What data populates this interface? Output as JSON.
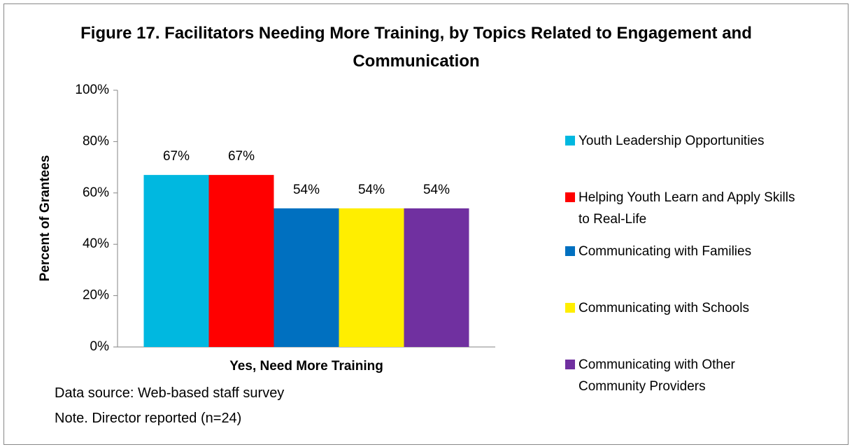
{
  "chart_data": {
    "type": "bar",
    "title": "Figure 17. Facilitators Needing More Training, by Topics Related to Engagement and Communication",
    "y_axis_label": "Percent of Grantees",
    "categories": [
      "Yes, Need More Training"
    ],
    "series": [
      {
        "name": "Youth Leadership Opportunities",
        "color": "#00b8e0",
        "values": [
          67
        ],
        "value_labels": [
          "67%"
        ]
      },
      {
        "name": "Helping Youth Learn and Apply Skills to Real-Life",
        "color": "#ff0000",
        "values": [
          67
        ],
        "value_labels": [
          "67%"
        ]
      },
      {
        "name": "Communicating with Families",
        "color": "#0070c0",
        "values": [
          54
        ],
        "value_labels": [
          "54%"
        ]
      },
      {
        "name": "Communicating with Schools",
        "color": "#ffee00",
        "values": [
          54
        ],
        "value_labels": [
          "54%"
        ]
      },
      {
        "name": "Communicating with Other Community Providers",
        "color": "#7030a0",
        "values": [
          54
        ],
        "value_labels": [
          "54%"
        ]
      }
    ],
    "ylim": [
      0,
      100
    ],
    "yticks": [
      {
        "value": 0,
        "label": "0%"
      },
      {
        "value": 20,
        "label": "20%"
      },
      {
        "value": 40,
        "label": "40%"
      },
      {
        "value": 60,
        "label": "60%"
      },
      {
        "value": 80,
        "label": "80%"
      },
      {
        "value": 100,
        "label": "100%"
      }
    ],
    "legend": "right",
    "notes": [
      "Data source: Web-based staff survey",
      "Note. Director reported (n=24)"
    ]
  }
}
